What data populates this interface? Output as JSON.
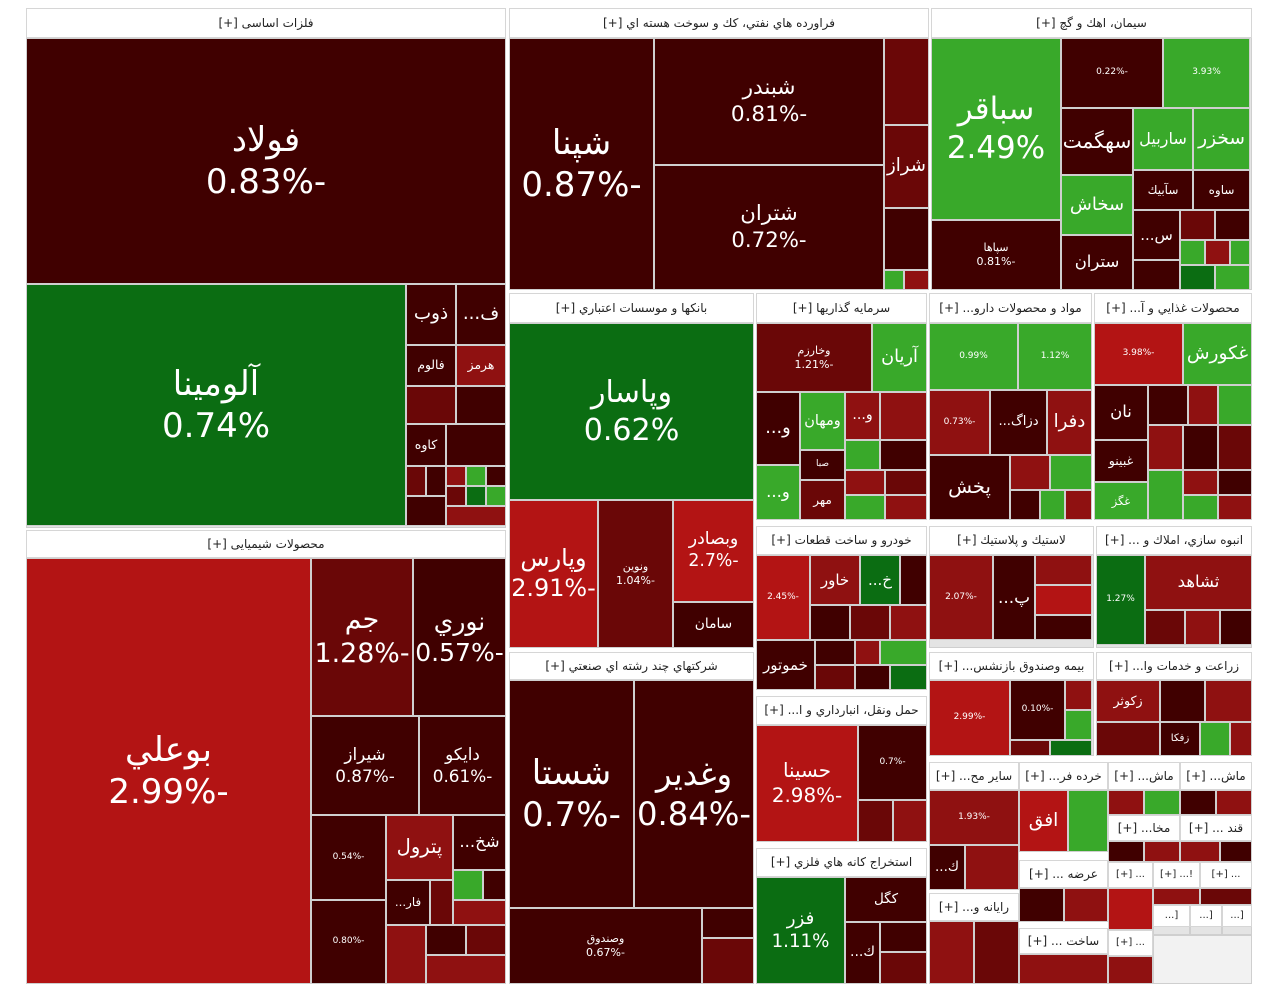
{
  "sectors": [
    {
      "title": "فلزات اساسی [+]",
      "tiles": [
        {
          "name": "فولاد",
          "change": "-0.83%"
        },
        {
          "name": "آلومينا",
          "change": "0.74%"
        },
        {
          "name": "ذوب"
        },
        {
          "name": "ف..."
        },
        {
          "name": "فالوم"
        },
        {
          "name": "هرمز"
        },
        {
          "name": "كاوه"
        }
      ]
    },
    {
      "title": "محصولات شیمیایی [+]",
      "tiles": [
        {
          "name": "بوعلي",
          "change": "-2.99%"
        },
        {
          "name": "جم",
          "change": "-1.28%"
        },
        {
          "name": "نوري",
          "change": "-0.57%"
        },
        {
          "name": "شيراز",
          "change": "-0.87%"
        },
        {
          "name": "دايكو",
          "change": "-0.61%"
        },
        {
          "change": "-0.54%"
        },
        {
          "name": "پترول"
        },
        {
          "name": "شخ..."
        },
        {
          "name": "فار..."
        },
        {
          "change": "-0.80%"
        }
      ]
    },
    {
      "title": "فراورده هاي نفتي، كك و سوخت هسته اي [+]",
      "tiles": [
        {
          "name": "شپنا",
          "change": "-0.87%"
        },
        {
          "name": "شبندر",
          "change": "-0.81%"
        },
        {
          "name": "شتران",
          "change": "-0.72%"
        },
        {
          "name": "شراز"
        }
      ]
    },
    {
      "title": "سيمان، اهك و گچ [+]",
      "tiles": [
        {
          "name": "سباقر",
          "change": "2.49%"
        },
        {
          "name": "سپاها",
          "change": "-0.81%"
        },
        {
          "change": "-0.22%"
        },
        {
          "change": "3.93%"
        },
        {
          "name": "سهگمت"
        },
        {
          "name": "ساربيل"
        },
        {
          "name": "سخزر"
        },
        {
          "name": "سخاش"
        },
        {
          "name": "سآبيك"
        },
        {
          "name": "ساوه"
        },
        {
          "name": "ستران"
        },
        {
          "name": "س..."
        }
      ]
    },
    {
      "title": "بانكها و موسسات اعتباري [+]",
      "tiles": [
        {
          "name": "وپاسار",
          "change": "0.62%"
        },
        {
          "name": "وپارس",
          "change": "-2.91%"
        },
        {
          "name": "ونوين",
          "change": "-1.04%"
        },
        {
          "name": "وبصادر",
          "change": "-2.7%"
        },
        {
          "name": "سامان"
        }
      ]
    },
    {
      "title": "شركتهاي چند رشته اي صنعتي [+]",
      "tiles": [
        {
          "name": "شستا",
          "change": "-0.7%"
        },
        {
          "name": "وغدير",
          "change": "-0.84%"
        },
        {
          "name": "وصندوق",
          "change": "-0.67%"
        }
      ]
    },
    {
      "title": "سرمايه گذاريها [+]",
      "tiles": [
        {
          "name": "وخارزم",
          "change": "-1.21%"
        },
        {
          "name": "آريان"
        },
        {
          "name": "و..."
        },
        {
          "name": "ومهان"
        },
        {
          "name": "و..."
        },
        {
          "name": "صبا"
        },
        {
          "name": "مهر"
        },
        {
          "name": "و..."
        }
      ]
    },
    {
      "title": "خودرو و ساخت قطعات [+]",
      "tiles": [
        {
          "change": "-2.45%"
        },
        {
          "name": "خاور"
        },
        {
          "name": "خ..."
        },
        {
          "name": "خموتور"
        }
      ]
    },
    {
      "title": "حمل ونقل، انبارداري و ا... [+]",
      "tiles": [
        {
          "name": "حسينا",
          "change": "-2.98%"
        },
        {
          "change": "-0.7%"
        }
      ]
    },
    {
      "title": "استخراج كانه هاي فلزي [+]",
      "tiles": [
        {
          "name": "فزر",
          "change": "1.11%"
        },
        {
          "name": "كگل"
        },
        {
          "name": "ك..."
        }
      ]
    },
    {
      "title": "مواد و محصولات دارو... [+]",
      "tiles": [
        {
          "change": "0.99%"
        },
        {
          "change": "1.12%"
        },
        {
          "change": "-0.73%"
        },
        {
          "name": "دزاگ..."
        },
        {
          "name": "دفرا"
        },
        {
          "name": "پخش"
        }
      ]
    },
    {
      "title": "محصولات غذايي و آ... [+]",
      "tiles": [
        {
          "change": "-3.98%"
        },
        {
          "name": "غكورش"
        },
        {
          "name": "نان"
        },
        {
          "name": "غبينو"
        },
        {
          "name": "غگز"
        }
      ]
    },
    {
      "title": "لاستيك و پلاستيك [+]",
      "tiles": [
        {
          "change": "-2.07%"
        },
        {
          "name": "پ..."
        }
      ]
    },
    {
      "title": "انبوه سازي، املاك و ... [+]",
      "tiles": [
        {
          "change": "1.27%"
        },
        {
          "name": "ثشاهد"
        }
      ]
    },
    {
      "title": "بيمه وصندوق بازنشس... [+]",
      "tiles": [
        {
          "change": "-2.99%"
        },
        {
          "change": "-0.10%"
        }
      ]
    },
    {
      "title": "زراعت و خدمات وا... [+]",
      "tiles": [
        {
          "name": "زكوثر"
        },
        {
          "name": "زفكا"
        }
      ]
    },
    {
      "title": "ساير مح... [+]",
      "tiles": [
        {
          "change": "-1.93%"
        },
        {
          "name": "ك..."
        }
      ]
    },
    {
      "title": "خرده فر... [+]",
      "tiles": [
        {
          "name": "افق"
        }
      ]
    },
    {
      "title": "ماش... [+]",
      "tiles": []
    },
    {
      "title": "ماش... [+]",
      "tiles": []
    },
    {
      "title": "مخا... [+]",
      "tiles": []
    },
    {
      "title": "قند ... [+]",
      "tiles": []
    },
    {
      "title": "رايانه و... [+]",
      "tiles": []
    },
    {
      "title": "عرضه ... [+]",
      "tiles": []
    },
    {
      "title": "ساخت ... [+]",
      "tiles": []
    },
    {
      "title": "... [+]",
      "tiles": []
    },
    {
      "title": "!... [+]",
      "tiles": []
    },
    {
      "title": "... [+]",
      "tiles": []
    },
    {
      "title": "... [+]",
      "tiles": []
    },
    {
      "title": "[...",
      "tiles": []
    },
    {
      "title": "[...",
      "tiles": []
    },
    {
      "title": "[...",
      "tiles": []
    }
  ]
}
